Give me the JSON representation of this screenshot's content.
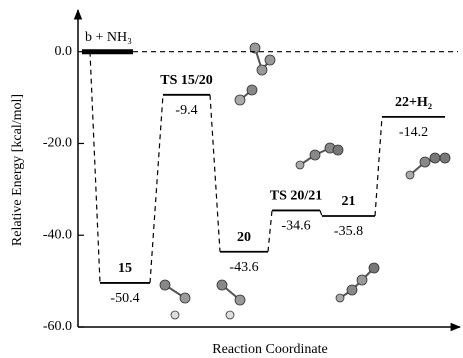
{
  "chart_data": {
    "type": "energy-profile",
    "y_label": "Relative Energy [kcal/mol]",
    "x_label": "Reaction Coordinate",
    "reference": {
      "label": "b + NH₃",
      "value": 0
    },
    "categories": [
      "15",
      "TS 15/20",
      "20",
      "TS 20/21",
      "21",
      "22+H₂"
    ],
    "values": [
      -50.4,
      -9.4,
      -43.6,
      -34.6,
      -35.8,
      -14.2
    ],
    "ylim": [
      -60,
      8
    ],
    "yticks": [
      {
        "value": 0,
        "label": "0.0"
      },
      {
        "value": -20,
        "label": "-20.0"
      },
      {
        "value": -40,
        "label": "-40.0"
      },
      {
        "value": -60,
        "label": "-60.0"
      }
    ],
    "color": "#000000"
  }
}
